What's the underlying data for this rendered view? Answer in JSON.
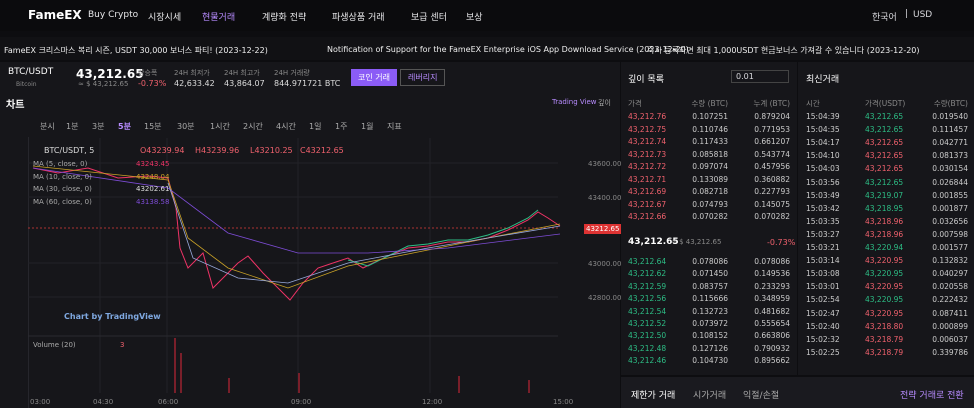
{
  "nav": {
    "logo": "FameEX",
    "items": [
      "Buy Crypto",
      "시장시세",
      "현물거래",
      "계량화 전략",
      "파생상품 거래",
      "보급 센터",
      "보상"
    ],
    "lang": "한국어",
    "currency": "USD"
  },
  "announcements": [
    "FameEX 크리스마스 복리 시즌, USDT 30,000 보너스 파티! (2023-12-22)",
    "Notification of Support for the FameEX Enterprise iOS App Download Service (2023-12-20)",
    "즉시 등록하면 최대 1,000USDT 현금보너스 가져갈 수 있습니다 (2023-12-20)"
  ],
  "ticker": {
    "pair": "BTC/USDT",
    "coin": "Bitcoin",
    "price": "43,212.65",
    "price_usd": "≈ $ 43,212.65",
    "stats": [
      {
        "label": "상승폭",
        "value": "-0.73%"
      },
      {
        "label": "24H 최저가",
        "value": "42,633.42"
      },
      {
        "label": "24H 최고가",
        "value": "43,864.07"
      },
      {
        "label": "24H 거래량",
        "value": "844.971721 BTC"
      }
    ],
    "tabs": [
      "코인 거래",
      "레버리지"
    ]
  },
  "chart": {
    "title": "차트",
    "links": [
      "Trading View",
      "깊이"
    ],
    "intervals": [
      "분시",
      "1분",
      "3분",
      "5분",
      "15분",
      "30분",
      "1시간",
      "2시간",
      "4시간",
      "1일",
      "1주",
      "1월",
      "지표"
    ],
    "legend": "BTC/USDT, 5",
    "ohlc": [
      "O43239.94",
      "H43239.96",
      "L43210.25",
      "C43212.65"
    ],
    "mas": [
      {
        "label": "MA (5, close, 0)",
        "value": "43243.45"
      },
      {
        "label": "MA (10, close, 0)",
        "value": "43248.04"
      },
      {
        "label": "MA (30, close, 0)",
        "value": "43202.61"
      },
      {
        "label": "MA (60, close, 0)",
        "value": "43138.58"
      }
    ],
    "price_axis": [
      "43600.00",
      "43400.00",
      "43000.00",
      "42800.00"
    ],
    "last_price": "43212.65",
    "time_axis": [
      "03:00",
      "04:30",
      "06:00",
      "09:00",
      "12:00",
      "15:00"
    ],
    "watermark": "Chart by TradingView",
    "volume": "Volume (20)",
    "volume_value": "3"
  },
  "orderbook": {
    "title": "깊이 목록",
    "precision": "0.01",
    "headers": [
      "가격",
      "수량 (BTC)",
      "누계 (BTC)"
    ],
    "asks": [
      [
        "43,212.76",
        "0.107251",
        "0.879204"
      ],
      [
        "43,212.75",
        "0.110746",
        "0.771953"
      ],
      [
        "43,212.74",
        "0.117433",
        "0.661207"
      ],
      [
        "43,212.73",
        "0.085818",
        "0.543774"
      ],
      [
        "43,212.72",
        "0.097074",
        "0.457956"
      ],
      [
        "43,212.71",
        "0.133089",
        "0.360882"
      ],
      [
        "43,212.69",
        "0.082718",
        "0.227793"
      ],
      [
        "43,212.67",
        "0.074793",
        "0.145075"
      ],
      [
        "43,212.66",
        "0.070282",
        "0.070282"
      ]
    ],
    "mid": {
      "price": "43,212.65",
      "usd": "≈ $ 43,212.65",
      "change": "-0.73%"
    },
    "bids": [
      [
        "43,212.64",
        "0.078086",
        "0.078086"
      ],
      [
        "43,212.62",
        "0.071450",
        "0.149536"
      ],
      [
        "43,212.59",
        "0.083757",
        "0.233293"
      ],
      [
        "43,212.56",
        "0.115666",
        "0.348959"
      ],
      [
        "43,212.54",
        "0.132723",
        "0.481682"
      ],
      [
        "43,212.52",
        "0.073972",
        "0.555654"
      ],
      [
        "43,212.50",
        "0.108152",
        "0.663806"
      ],
      [
        "43,212.48",
        "0.127126",
        "0.790932"
      ],
      [
        "43,212.46",
        "0.104730",
        "0.895662"
      ]
    ]
  },
  "trades": {
    "title": "최신거래",
    "headers": [
      "시간",
      "가격(USDT)",
      "수량(BTC)"
    ],
    "rows": [
      {
        "cells": [
          "15:04:39",
          "43,212.65",
          "0.019540"
        ],
        "color": "#2dbd85"
      },
      {
        "cells": [
          "15:04:35",
          "43,212.65",
          "0.111457"
        ],
        "color": "#2dbd85"
      },
      {
        "cells": [
          "15:04:17",
          "43,212.65",
          "0.042771"
        ],
        "color": "#f0616d"
      },
      {
        "cells": [
          "15:04:10",
          "43,212.65",
          "0.081373"
        ],
        "color": "#f0616d"
      },
      {
        "cells": [
          "15:04:03",
          "43,212.65",
          "0.030154"
        ],
        "color": "#f0616d"
      },
      {
        "cells": [
          "15:03:56",
          "43,212.65",
          "0.026844"
        ],
        "color": "#2dbd85"
      },
      {
        "cells": [
          "15:03:49",
          "43,219.07",
          "0.001855"
        ],
        "color": "#2dbd85"
      },
      {
        "cells": [
          "15:03:42",
          "43,218.95",
          "0.001877"
        ],
        "color": "#2dbd85"
      },
      {
        "cells": [
          "15:03:35",
          "43,218.96",
          "0.032656"
        ],
        "color": "#f0616d"
      },
      {
        "cells": [
          "15:03:27",
          "43,218.96",
          "0.007598"
        ],
        "color": "#f0616d"
      },
      {
        "cells": [
          "15:03:21",
          "43,220.94",
          "0.001577"
        ],
        "color": "#2dbd85"
      },
      {
        "cells": [
          "15:03:14",
          "43,220.95",
          "0.132832"
        ],
        "color": "#f0616d"
      },
      {
        "cells": [
          "15:03:08",
          "43,220.95",
          "0.040297"
        ],
        "color": "#2dbd85"
      },
      {
        "cells": [
          "15:03:01",
          "43,220.95",
          "0.020558"
        ],
        "color": "#f0616d"
      },
      {
        "cells": [
          "15:02:54",
          "43,220.95",
          "0.222432"
        ],
        "color": "#2dbd85"
      },
      {
        "cells": [
          "15:02:47",
          "43,220.95",
          "0.087411"
        ],
        "color": "#f0616d"
      },
      {
        "cells": [
          "15:02:40",
          "43,218.80",
          "0.000899"
        ],
        "color": "#f0616d"
      },
      {
        "cells": [
          "15:02:32",
          "43,218.79",
          "0.006037"
        ],
        "color": "#f0616d"
      },
      {
        "cells": [
          "15:02:25",
          "43,218.79",
          "0.339786"
        ],
        "color": "#f0616d"
      }
    ]
  },
  "order_tabs": [
    "제한가 거래",
    "시가거래",
    "익절/손절"
  ],
  "strategy_link": "전략 거래로 전환"
}
